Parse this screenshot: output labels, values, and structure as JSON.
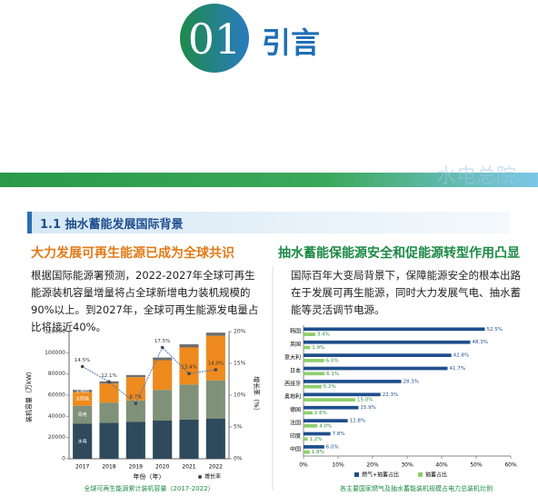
{
  "header": {
    "number": "01",
    "title": "引言",
    "watermark": "水电总院"
  },
  "section": "1.1 抽水蓄能发展国际背景",
  "left": {
    "heading": "大力发展可再生能源已成为全球共识",
    "paragraph": "根据国际能源署预测，2022-2027年全球可再生能源装机容量增量将占全球新增电力装机规模的90%以上。到2027年，全球可再生能源发电量占比将接近40%。"
  },
  "right": {
    "heading": "抽水蓄能保能源安全和促能源转型作用凸显",
    "paragraph": "国际百年大变局背景下，保障能源安全的根本出路在于发展可再生能源，同时大力发展气电、抽水蓄能等灵活调节电源。"
  },
  "chart_data": [
    {
      "type": "bar",
      "stacked": true,
      "caption": "全球可再生能源累计装机容量（2017-2022）",
      "x_label": "年份（年）",
      "y_label": "装机容量（万kW）",
      "y2_label": "增长率（%）",
      "categories": [
        "2017",
        "2018",
        "2019",
        "2020",
        "2021",
        "2022"
      ],
      "series": [
        {
          "name": "水电",
          "color": "#2f4a5c",
          "values": [
            33000,
            34000,
            35000,
            36000,
            37000,
            38000
          ]
        },
        {
          "name": "风电",
          "color": "#7f9178",
          "values": [
            17000,
            19000,
            20000,
            29000,
            33000,
            36000
          ]
        },
        {
          "name": "太阳能",
          "color": "#ee8a1e",
          "values": [
            13000,
            18000,
            22000,
            28000,
            35000,
            42000
          ]
        },
        {
          "name": "生物质",
          "color": "#6f6f6f",
          "values": [
            2000,
            2000,
            2000,
            2500,
            3000,
            3000
          ]
        },
        {
          "name": "增长率",
          "type": "line",
          "axis": "y2",
          "color": "#4a78b5",
          "values": [
            14.5,
            12.1,
            8.7,
            17.5,
            13.4,
            14.0
          ],
          "value_labels": [
            "14.5%",
            "12.1%",
            "8.7%",
            "17.5%",
            "13.4%",
            "14.0%"
          ]
        }
      ],
      "ylim": [
        0,
        120000
      ],
      "yticks": [
        0,
        20000,
        40000,
        60000,
        80000,
        100000,
        120000
      ],
      "y2lim": [
        0,
        20
      ],
      "y2ticks": [
        {
          "value": 0,
          "label": "0%"
        },
        {
          "value": 5,
          "label": "5%"
        },
        {
          "value": 10,
          "label": "10%"
        },
        {
          "value": 15,
          "label": "15%"
        },
        {
          "value": 20,
          "label": "20%"
        }
      ]
    },
    {
      "type": "bar",
      "orientation": "horizontal",
      "caption": "各主要国家燃气及抽水蓄能装机规模占电力总装机比例",
      "categories": [
        "韩国",
        "英国",
        "意大利",
        "日本",
        "西班牙",
        "奥地利",
        "德国",
        "法国",
        "印度",
        "中国"
      ],
      "series": [
        {
          "name": "燃气+抽蓄占比",
          "color": "#1f4e8c",
          "values": [
            52.5,
            48.3,
            42.8,
            41.7,
            28.3,
            22.3,
            15.9,
            12.8,
            7.8,
            6.0
          ],
          "value_labels": [
            "52.5%",
            "48.3%",
            "42.8%",
            "41.7%",
            "28.3%",
            "22.3%",
            "15.9%",
            "12.8%",
            "7.8%",
            "6.0%"
          ]
        },
        {
          "name": "抽蓄占比",
          "color": "#8fcf6c",
          "values": [
            3.4,
            1.9,
            6.0,
            6.1,
            5.2,
            15.0,
            2.6,
            4.0,
            1.2,
            1.8
          ],
          "value_labels": [
            "3.4%",
            "1.9%",
            "6.0%",
            "6.1%",
            "5.2%",
            "15.0%",
            "2.6%",
            "4.0%",
            "1.2%",
            "1.8%"
          ]
        }
      ],
      "xlim": [
        0,
        60
      ],
      "xticks": [
        {
          "value": 0,
          "label": "0%"
        },
        {
          "value": 10,
          "label": "10%"
        },
        {
          "value": 20,
          "label": "20%"
        },
        {
          "value": 30,
          "label": "30%"
        },
        {
          "value": 40,
          "label": "40%"
        },
        {
          "value": 50,
          "label": "50%"
        },
        {
          "value": 60,
          "label": "60%"
        }
      ]
    }
  ]
}
